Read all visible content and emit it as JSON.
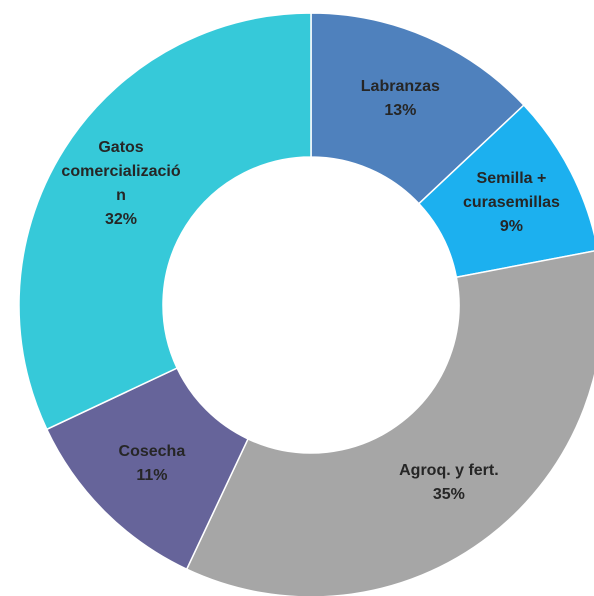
{
  "chart_data": {
    "type": "donut",
    "categories": [
      "Labranzas",
      "Semilla + curasemillas",
      "Agroq. y fert.",
      "Cosecha",
      "Gatos comercialización"
    ],
    "values": [
      13,
      9,
      35,
      11,
      32
    ],
    "value_labels": [
      "13%",
      "9%",
      "35%",
      "11%",
      "32%"
    ],
    "colors": [
      "#4f81bd",
      "#1cb0ef",
      "#a6a6a6",
      "#66649a",
      "#36c9d9"
    ]
  }
}
